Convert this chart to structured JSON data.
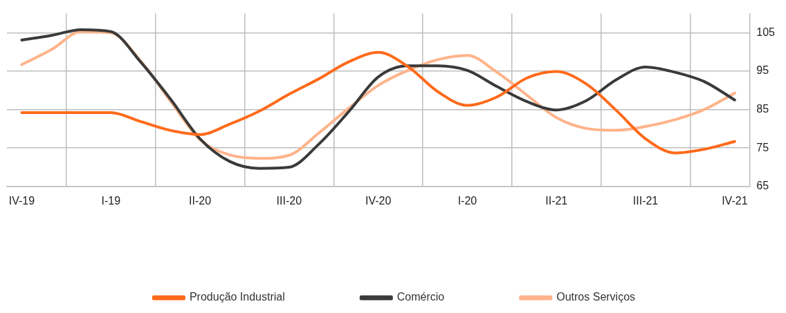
{
  "chart_data": {
    "type": "line",
    "categories": [
      "IV-19",
      null,
      null,
      "I-19",
      null,
      null,
      "II-20",
      null,
      null,
      "III-20",
      null,
      null,
      "IV-20",
      null,
      null,
      "I-20",
      null,
      null,
      "II-21",
      null,
      null,
      "III-21",
      null,
      null,
      "IV-21"
    ],
    "series": [
      {
        "name": "Produção Industrial",
        "color": "#ff6a1a",
        "values": [
          84.2,
          84.2,
          84.2,
          84.2,
          81.9,
          79.6,
          78.5,
          81.2,
          84.6,
          89.0,
          93.0,
          97.4,
          99.9,
          96.2,
          89.7,
          86.1,
          88.3,
          93.2,
          94.9,
          91.7,
          84.9,
          77.4,
          73.7,
          74.7,
          76.7
        ]
      },
      {
        "name": "Comércio",
        "color": "#3a3a3a",
        "values": [
          103.1,
          104.3,
          105.8,
          105.3,
          97.4,
          87.8,
          77.4,
          71.5,
          69.7,
          70.0,
          76.0,
          84.4,
          93.5,
          96.4,
          96.4,
          95.2,
          91.0,
          87.1,
          84.9,
          87.3,
          92.7,
          96.1,
          94.7,
          92.2,
          87.5
        ]
      },
      {
        "name": "Outros Serviços",
        "color": "#ffb38a",
        "values": [
          96.7,
          100.6,
          105.3,
          105.0,
          97.7,
          87.3,
          77.2,
          73.2,
          72.3,
          73.1,
          78.9,
          85.3,
          91.3,
          95.2,
          98.0,
          99.1,
          94.7,
          88.8,
          82.9,
          80.1,
          79.6,
          80.6,
          82.4,
          85.1,
          89.3
        ]
      }
    ],
    "ylim": [
      65,
      110
    ],
    "yticks": [
      65,
      75,
      85,
      95,
      105
    ],
    "grid": true,
    "legend": "bottom",
    "marker": "none",
    "line_style": "solid"
  }
}
